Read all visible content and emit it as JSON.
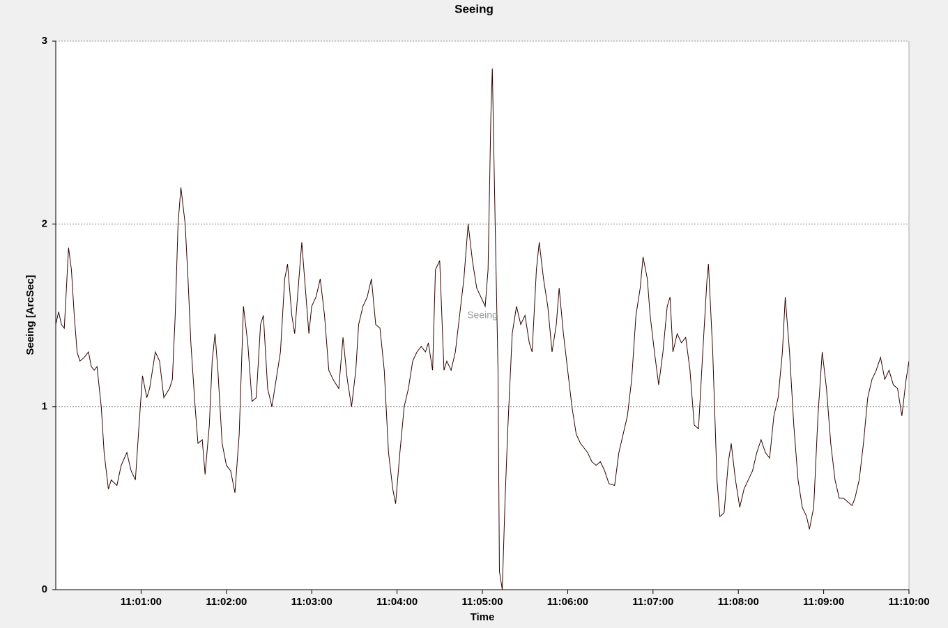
{
  "chart_data": {
    "type": "line",
    "title": "Seeing",
    "x_label": "Time",
    "y_label": "Seeing [ArcSec]",
    "xlim": [
      "11:00:00",
      "11:10:00"
    ],
    "xticks": [
      "11:01:00",
      "11:02:00",
      "11:03:00",
      "11:04:00",
      "11:05:00",
      "11:06:00",
      "11:07:00",
      "11:08:00",
      "11:09:00",
      "11:10:00"
    ],
    "ylim": [
      0,
      3
    ],
    "yticks": [
      0,
      1,
      2,
      3
    ],
    "grid": true,
    "x": [
      "11:00:00",
      "11:00:02",
      "11:00:04",
      "11:00:06",
      "11:00:09",
      "11:00:11",
      "11:00:13",
      "11:00:15",
      "11:00:17",
      "11:00:20",
      "11:00:23",
      "11:00:25",
      "11:00:27",
      "11:00:29",
      "11:00:32",
      "11:00:34",
      "11:00:37",
      "11:00:39",
      "11:00:43",
      "11:00:46",
      "11:00:50",
      "11:00:53",
      "11:00:56",
      "11:00:59",
      "11:01:01",
      "11:01:04",
      "11:01:06",
      "11:01:10",
      "11:01:13",
      "11:01:16",
      "11:01:20",
      "11:01:22",
      "11:01:24",
      "11:01:26",
      "11:01:28",
      "11:01:31",
      "11:01:33",
      "11:01:35",
      "11:01:38",
      "11:01:40",
      "11:01:43",
      "11:01:45",
      "11:01:48",
      "11:01:50",
      "11:01:52",
      "11:01:54",
      "11:01:57",
      "11:02:00",
      "11:02:03",
      "11:02:06",
      "11:02:09",
      "11:02:12",
      "11:02:15",
      "11:02:18",
      "11:02:21",
      "11:02:24",
      "11:02:26",
      "11:02:29",
      "11:02:32",
      "11:02:35",
      "11:02:38",
      "11:02:41",
      "11:02:43",
      "11:02:46",
      "11:02:48",
      "11:02:51",
      "11:02:53",
      "11:02:55",
      "11:02:58",
      "11:03:00",
      "11:03:03",
      "11:03:06",
      "11:03:09",
      "11:03:12",
      "11:03:15",
      "11:03:19",
      "11:03:22",
      "11:03:25",
      "11:03:28",
      "11:03:31",
      "11:03:33",
      "11:03:36",
      "11:03:39",
      "11:03:42",
      "11:03:45",
      "11:03:48",
      "11:03:51",
      "11:03:54",
      "11:03:57",
      "11:03:59",
      "11:04:02",
      "11:04:05",
      "11:04:08",
      "11:04:11",
      "11:04:14",
      "11:04:17",
      "11:04:20",
      "11:04:22",
      "11:04:25",
      "11:04:27",
      "11:04:30",
      "11:04:33",
      "11:04:35",
      "11:04:38",
      "11:04:41",
      "11:04:44",
      "11:04:47",
      "11:04:50",
      "11:04:53",
      "11:04:56",
      "11:04:59",
      "11:05:02",
      "11:05:04",
      "11:05:06",
      "11:05:07",
      "11:05:09",
      "11:05:11",
      "11:05:12",
      "11:05:14",
      "11:05:16",
      "11:05:18",
      "11:05:21",
      "11:05:24",
      "11:05:27",
      "11:05:30",
      "11:05:33",
      "11:05:35",
      "11:05:38",
      "11:05:40",
      "11:05:43",
      "11:05:46",
      "11:05:49",
      "11:05:52",
      "11:05:54",
      "11:05:57",
      "11:06:00",
      "11:06:03",
      "11:06:06",
      "11:06:09",
      "11:06:11",
      "11:06:14",
      "11:06:17",
      "11:06:20",
      "11:06:23",
      "11:06:26",
      "11:06:29",
      "11:06:33",
      "11:06:36",
      "11:06:39",
      "11:06:42",
      "11:06:45",
      "11:06:48",
      "11:06:51",
      "11:06:53",
      "11:06:56",
      "11:06:58",
      "11:07:01",
      "11:07:04",
      "11:07:07",
      "11:07:10",
      "11:07:12",
      "11:07:14",
      "11:07:17",
      "11:07:20",
      "11:07:23",
      "11:07:26",
      "11:07:29",
      "11:07:32",
      "11:07:35",
      "11:07:38",
      "11:07:39",
      "11:07:42",
      "11:07:45",
      "11:07:47",
      "11:07:50",
      "11:07:53",
      "11:07:55",
      "11:07:58",
      "11:08:01",
      "11:08:04",
      "11:08:07",
      "11:08:10",
      "11:08:13",
      "11:08:16",
      "11:08:19",
      "11:08:22",
      "11:08:25",
      "11:08:28",
      "11:08:31",
      "11:08:33",
      "11:08:36",
      "11:08:39",
      "11:08:42",
      "11:08:45",
      "11:08:48",
      "11:08:50",
      "11:08:53",
      "11:08:56",
      "11:08:59",
      "11:09:02",
      "11:09:05",
      "11:09:08",
      "11:09:11",
      "11:09:14",
      "11:09:17",
      "11:09:20",
      "11:09:22",
      "11:09:25",
      "11:09:28",
      "11:09:31",
      "11:09:34",
      "11:09:37",
      "11:09:40",
      "11:09:43",
      "11:09:46",
      "11:09:49",
      "11:09:52",
      "11:09:55",
      "11:09:58",
      "11:10:00"
    ],
    "series": [
      {
        "name": "Seeing",
        "color": "#300000",
        "values": [
          1.45,
          1.52,
          1.45,
          1.43,
          1.87,
          1.75,
          1.5,
          1.3,
          1.25,
          1.27,
          1.3,
          1.22,
          1.2,
          1.22,
          1.0,
          0.75,
          0.55,
          0.6,
          0.57,
          0.68,
          0.75,
          0.65,
          0.6,
          0.95,
          1.17,
          1.05,
          1.1,
          1.3,
          1.25,
          1.05,
          1.1,
          1.15,
          1.5,
          2.0,
          2.2,
          2.0,
          1.7,
          1.35,
          1.0,
          0.8,
          0.82,
          0.63,
          0.9,
          1.25,
          1.4,
          1.2,
          0.8,
          0.68,
          0.65,
          0.53,
          0.85,
          1.55,
          1.35,
          1.03,
          1.05,
          1.45,
          1.5,
          1.1,
          1.0,
          1.15,
          1.3,
          1.7,
          1.78,
          1.5,
          1.4,
          1.7,
          1.9,
          1.7,
          1.4,
          1.55,
          1.6,
          1.7,
          1.5,
          1.2,
          1.15,
          1.1,
          1.38,
          1.15,
          1.0,
          1.2,
          1.45,
          1.55,
          1.6,
          1.7,
          1.45,
          1.43,
          1.2,
          0.75,
          0.55,
          0.47,
          0.75,
          1.0,
          1.1,
          1.25,
          1.3,
          1.33,
          1.3,
          1.35,
          1.2,
          1.75,
          1.8,
          1.2,
          1.25,
          1.2,
          1.3,
          1.5,
          1.7,
          2.0,
          1.8,
          1.65,
          1.6,
          1.55,
          1.75,
          2.6,
          2.85,
          2.0,
          1.2,
          0.1,
          0.0,
          0.5,
          0.9,
          1.4,
          1.55,
          1.45,
          1.5,
          1.35,
          1.3,
          1.75,
          1.9,
          1.7,
          1.55,
          1.3,
          1.45,
          1.65,
          1.4,
          1.2,
          1.0,
          0.85,
          0.8,
          0.78,
          0.75,
          0.7,
          0.68,
          0.7,
          0.65,
          0.58,
          0.57,
          0.75,
          0.85,
          0.95,
          1.15,
          1.5,
          1.65,
          1.82,
          1.7,
          1.5,
          1.3,
          1.12,
          1.3,
          1.55,
          1.6,
          1.3,
          1.4,
          1.35,
          1.38,
          1.2,
          0.9,
          0.88,
          1.3,
          1.7,
          1.78,
          1.3,
          0.6,
          0.4,
          0.42,
          0.7,
          0.8,
          0.6,
          0.45,
          0.55,
          0.6,
          0.65,
          0.75,
          0.82,
          0.75,
          0.72,
          0.95,
          1.05,
          1.3,
          1.6,
          1.3,
          0.9,
          0.6,
          0.45,
          0.4,
          0.33,
          0.45,
          0.95,
          1.3,
          1.1,
          0.8,
          0.6,
          0.5,
          0.5,
          0.48,
          0.46,
          0.5,
          0.6,
          0.8,
          1.05,
          1.15,
          1.2,
          1.27,
          1.15,
          1.2,
          1.12,
          1.1,
          0.95,
          1.15,
          1.25
        ]
      }
    ]
  }
}
